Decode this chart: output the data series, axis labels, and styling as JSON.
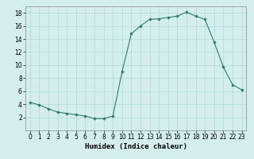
{
  "x": [
    0,
    1,
    2,
    3,
    4,
    5,
    6,
    7,
    8,
    9,
    10,
    11,
    12,
    13,
    14,
    15,
    16,
    17,
    18,
    19,
    20,
    21,
    22,
    23
  ],
  "y": [
    4.3,
    3.9,
    3.3,
    2.8,
    2.6,
    2.4,
    2.2,
    1.8,
    1.8,
    2.2,
    9.0,
    14.8,
    16.0,
    17.0,
    17.1,
    17.3,
    17.5,
    18.1,
    17.5,
    17.0,
    13.5,
    9.7,
    7.0,
    6.2
  ],
  "line_color": "#2d7d6e",
  "marker": "D",
  "marker_size": 1.8,
  "bg_color": "#d4eeee",
  "grid_color": "#b0d8d8",
  "xlabel": "Humidex (Indice chaleur)",
  "ylim": [
    0,
    19
  ],
  "xlim": [
    -0.5,
    23.5
  ],
  "yticks": [
    2,
    4,
    6,
    8,
    10,
    12,
    14,
    16,
    18
  ],
  "xticks": [
    0,
    1,
    2,
    3,
    4,
    5,
    6,
    7,
    8,
    9,
    10,
    11,
    12,
    13,
    14,
    15,
    16,
    17,
    18,
    19,
    20,
    21,
    22,
    23
  ],
  "xlabel_fontsize": 6.5,
  "tick_fontsize": 5.5
}
